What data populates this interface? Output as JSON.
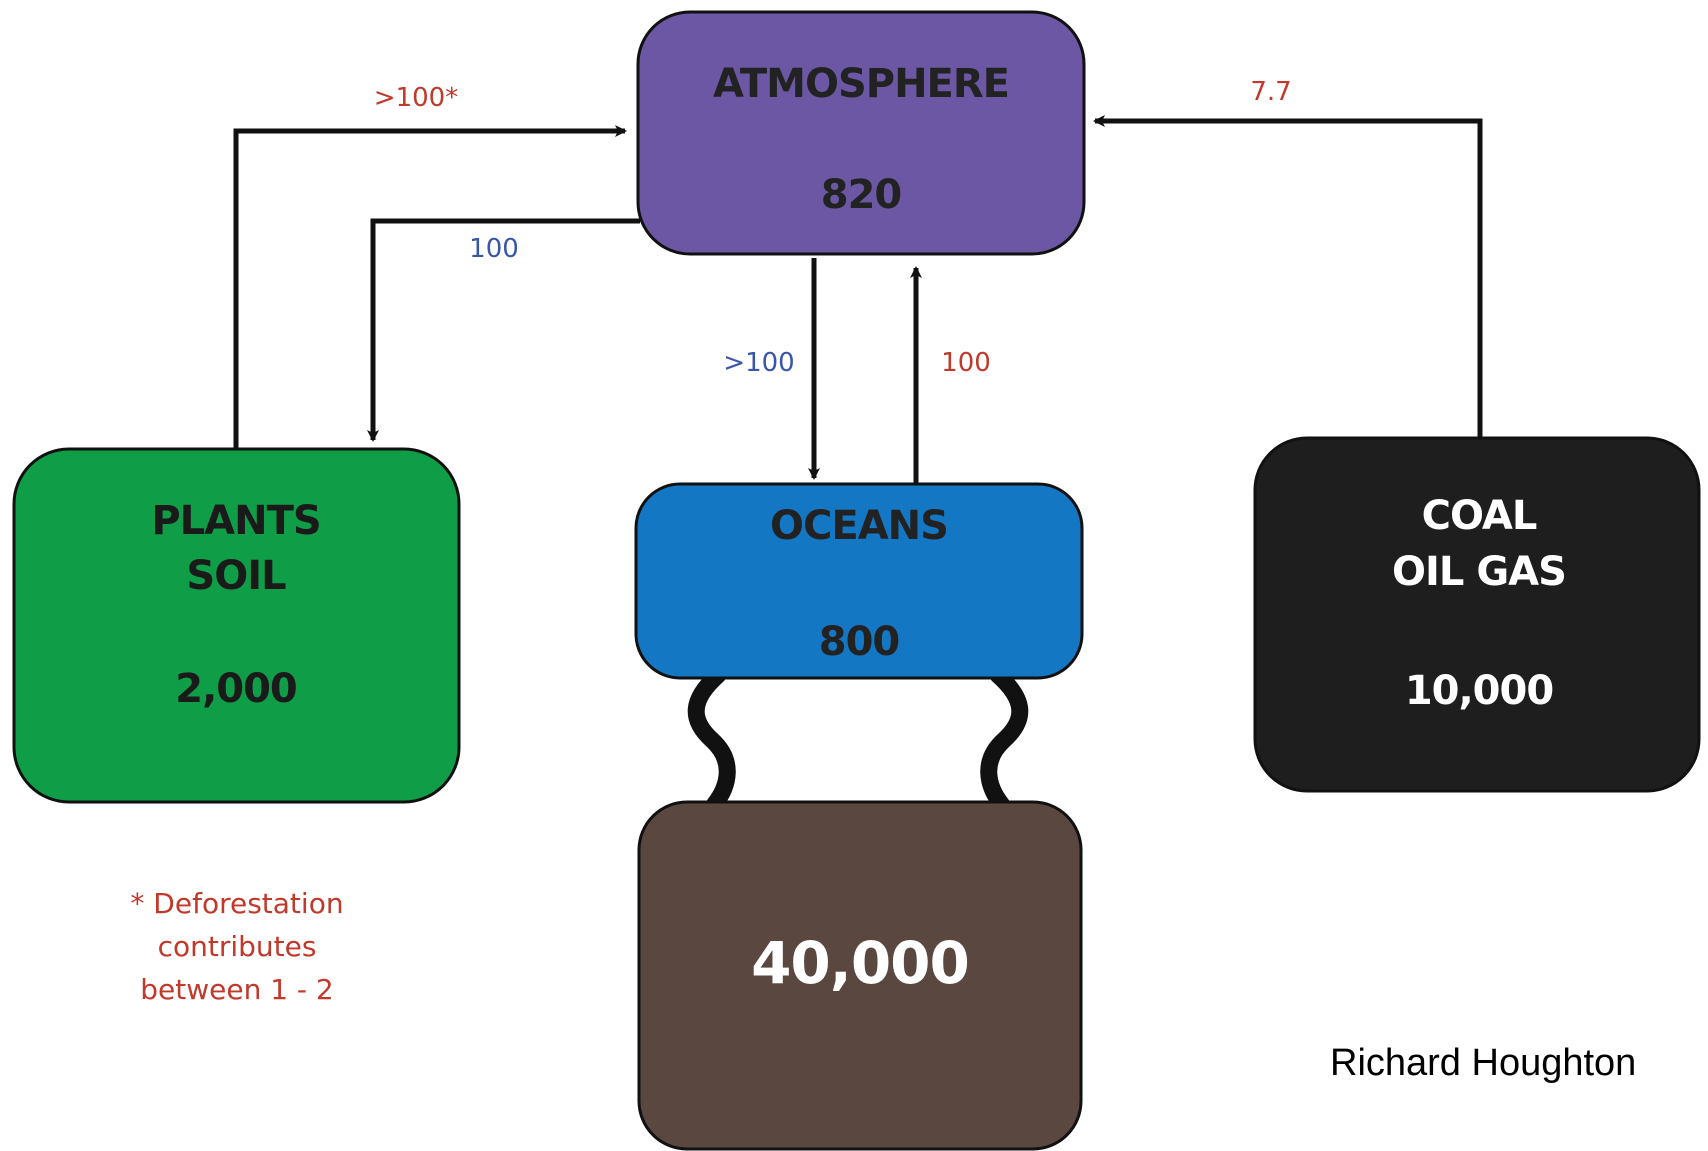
{
  "reservoirs": {
    "atmosphere": {
      "name": "ATMOSPHERE",
      "value": "820",
      "color": "#6B57A4"
    },
    "plants_soil": {
      "name_line1": "PLANTS",
      "name_line2": "SOIL",
      "value": "2,000",
      "color": "#0F9D48"
    },
    "oceans": {
      "name": "OCEANS",
      "value": "800",
      "color": "#1477C4"
    },
    "deep_ocean": {
      "value": "40,000",
      "color": "#5A4840"
    },
    "fossil_fuels": {
      "name_line1": "COAL",
      "name_line2": "OIL GAS",
      "value": "10,000",
      "color": "#1E1E1E"
    }
  },
  "flows": {
    "plants_to_atmosphere": {
      "label": ">100*",
      "color": "#C0392B"
    },
    "atmosphere_to_plants": {
      "label": "100",
      "color": "#3A56A8"
    },
    "atmosphere_to_oceans": {
      "label": ">100",
      "color": "#3A56A8"
    },
    "oceans_to_atmosphere": {
      "label": "100",
      "color": "#C0392B"
    },
    "fossil_to_atmosphere": {
      "label": "7.7",
      "color": "#C0392B"
    }
  },
  "footnote": {
    "line1": "* Deforestation",
    "line2": "contributes",
    "line3": "between 1 - 2",
    "color": "#C0392B"
  },
  "credit": "Richard Houghton"
}
